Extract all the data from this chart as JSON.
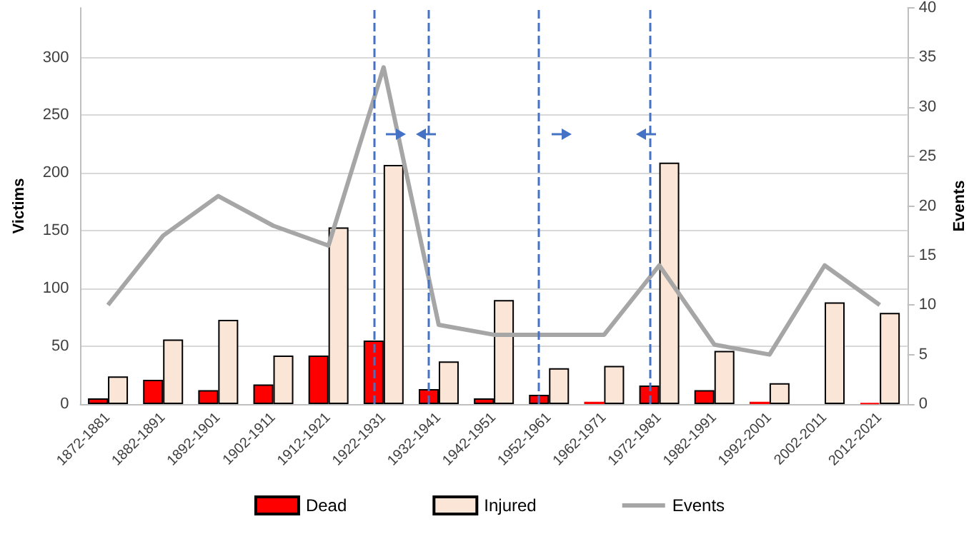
{
  "chart_data": {
    "type": "bar",
    "ylabel": "Victims",
    "y2label": "Events",
    "categories": [
      "1872-1881",
      "1882-1891",
      "1892-1901",
      "1902-1911",
      "1912-1921",
      "1922-1931",
      "1932-1941",
      "1942-1951",
      "1952-1961",
      "1962-1971",
      "1972-1981",
      "1982-1991",
      "1992-2001",
      "2002-2011",
      "2012-2021"
    ],
    "series": [
      {
        "name": "Dead",
        "color": "#ff0000",
        "values": [
          5,
          21,
          12,
          17,
          42,
          55,
          13,
          5,
          8,
          2,
          16,
          12,
          2,
          0,
          1
        ]
      },
      {
        "name": "Injured",
        "color": "#fbe5d6",
        "values": [
          24,
          56,
          73,
          42,
          153,
          207,
          37,
          90,
          31,
          33,
          209,
          46,
          18,
          88,
          79
        ]
      },
      {
        "name": "Events",
        "type": "line",
        "axis": "y2",
        "color": "#a6a6a6",
        "values": [
          10,
          17,
          21,
          18,
          16,
          34,
          8,
          7,
          7,
          7,
          14,
          6,
          5,
          14,
          10
        ]
      }
    ],
    "ylim": [
      0,
      343
    ],
    "yticks": [
      0,
      50,
      100,
      150,
      200,
      250,
      300
    ],
    "y2lim": [
      0,
      40
    ],
    "y2ticks": [
      0,
      5,
      10,
      15,
      20,
      25,
      30,
      35,
      40
    ],
    "ref_lines": [
      {
        "axis": "x",
        "value": "1922-1931",
        "color": "#4472c4",
        "line_style": "dashed"
      },
      {
        "axis": "x",
        "value": "1932-1941",
        "color": "#4472c4",
        "line_style": "dashed"
      },
      {
        "axis": "x",
        "value": "1952-1961",
        "color": "#4472c4",
        "line_style": "dashed"
      },
      {
        "axis": "x",
        "value": "1972-1981",
        "color": "#4472c4",
        "line_style": "dashed"
      }
    ],
    "grid": "y",
    "legend": "bottom",
    "marker": "none"
  }
}
